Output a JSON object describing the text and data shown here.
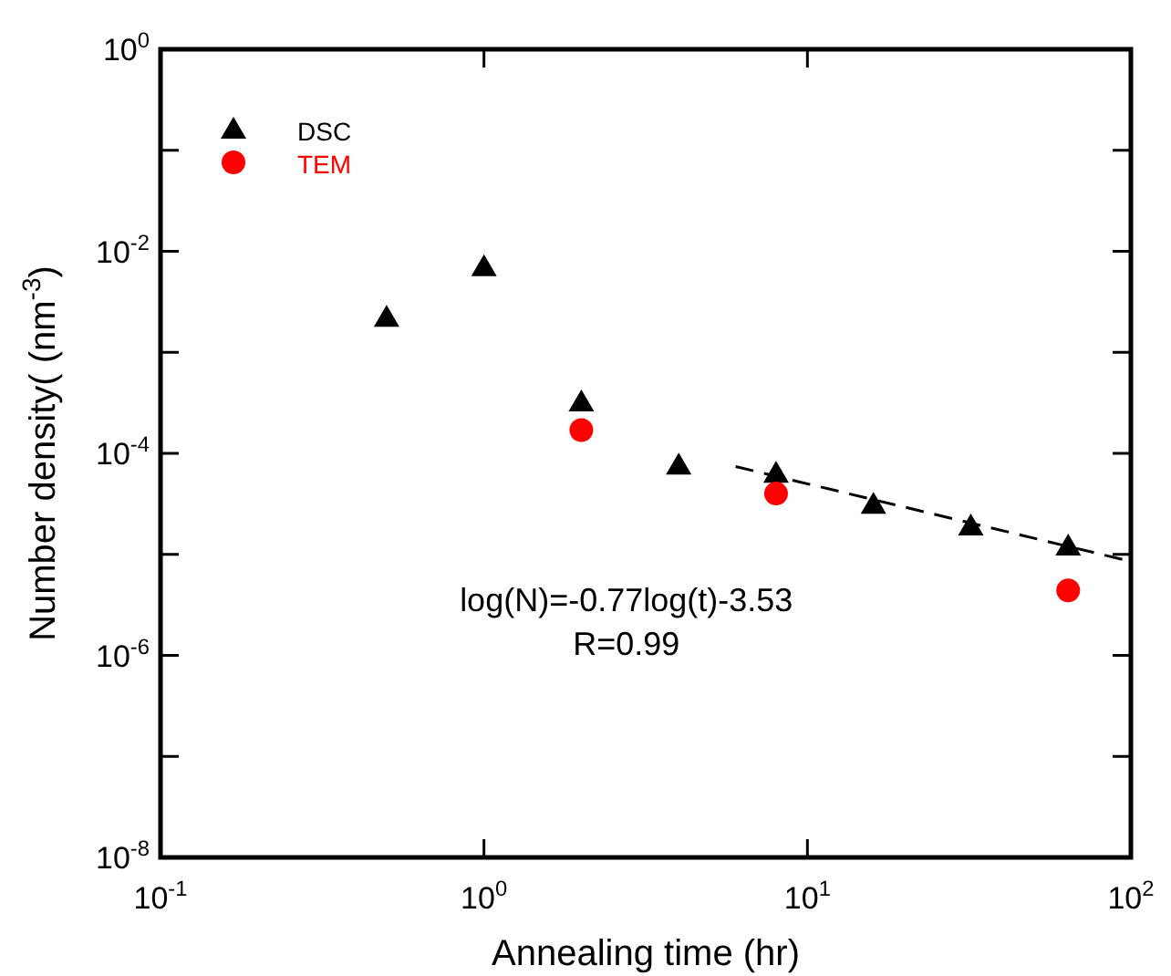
{
  "chart_data": {
    "type": "scatter",
    "xlabel": "Annealing time (hr)",
    "ylabel": "Number density( (nm$^{-3}$)",
    "log": "xy",
    "grid": false,
    "legend": "top left",
    "xlim": [
      0.1,
      100
    ],
    "xticks": [
      {
        "value": 0.1,
        "label": "10$^{-1}$"
      },
      {
        "value": 1,
        "label": "10$^{0}$"
      },
      {
        "value": 10,
        "label": "10$^{1}$"
      },
      {
        "value": 100,
        "label": "10$^{2}$"
      }
    ],
    "ylim": [
      1e-08,
      1
    ],
    "yticks": [
      {
        "value": 1e-08,
        "label": "10$^{-8}$"
      },
      {
        "value": 1e-07,
        "label": null
      },
      {
        "value": 1e-06,
        "label": "10$^{-6}$"
      },
      {
        "value": 1e-05,
        "label": null
      },
      {
        "value": 0.0001,
        "label": "10$^{-4}$"
      },
      {
        "value": 0.001,
        "label": null
      },
      {
        "value": 0.01,
        "label": "10$^{-2}$"
      },
      {
        "value": 0.1,
        "label": null
      },
      {
        "value": 1,
        "label": "10$^{0}$"
      }
    ],
    "series": [
      {
        "name": "DSC",
        "color": "#000000",
        "marker": "triangle",
        "x": [
          0.5,
          1,
          2,
          4,
          8,
          16,
          32,
          64
        ],
        "values": [
          0.0022,
          0.007,
          0.00032,
          7.6e-05,
          6.3e-05,
          3.1e-05,
          1.9e-05,
          1.2e-05
        ]
      },
      {
        "name": "TEM",
        "color": "#ff0000",
        "marker": "circle",
        "x": [
          2,
          8,
          64
        ],
        "values": [
          0.00017,
          4e-05,
          4.4e-06
        ]
      },
      {
        "type": "line",
        "color": "#000000",
        "marker": "none",
        "line_style": "dashed",
        "x": [
          6,
          100
        ],
        "values": [
          7.4e-05,
          8.5e-06
        ]
      }
    ],
    "annotations": [
      "log(N)=-0.77log(t)-3.53",
      "R=0.99"
    ]
  }
}
